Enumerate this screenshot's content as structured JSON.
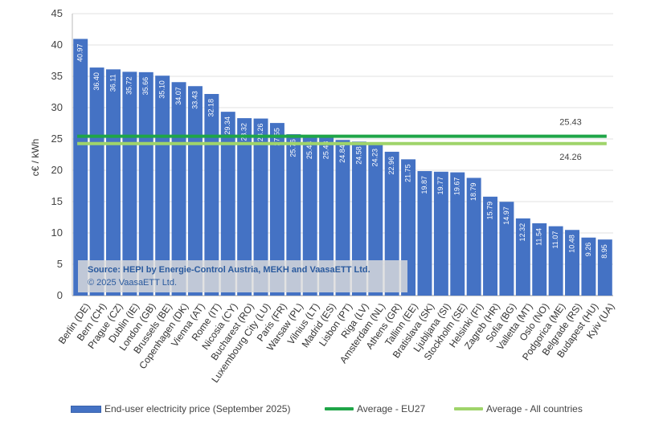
{
  "chart_data": {
    "type": "bar",
    "ylabel": "c€ / kWh",
    "ylim": [
      0,
      45
    ],
    "yticks": [
      0,
      5,
      10,
      15,
      20,
      25,
      30,
      35,
      40,
      45
    ],
    "categories": [
      "Berlin (DE)",
      "Bern (CH)",
      "Prague (CZ)",
      "Dublin (IE)",
      "London (GB)",
      "Brussels (BE)",
      "Copenhagen (DK)",
      "Vienna (AT)",
      "Rome (IT)",
      "Nicosia (CY)",
      "Bucharest (RO)",
      "Luxembourg City (LU)",
      "Paris (FR)",
      "Warsaw (PL)",
      "Vilnius (LT)",
      "Madrid (ES)",
      "Lisbon (PT)",
      "Riga (LV)",
      "Amsterdam (NL)",
      "Athens (GR)",
      "Tallinn (EE)",
      "Bratislava (SK)",
      "Ljubljana (SI)",
      "Stockholm (SE)",
      "Helsinki (FI)",
      "Zagreb (HR)",
      "Sofia (BG)",
      "Valletta (MT)",
      "Oslo (NO)",
      "Podgorica (ME)",
      "Belgrade (RS)",
      "Budapest (HU)",
      "Kyiv (UA)"
    ],
    "values": [
      40.97,
      36.4,
      36.11,
      35.72,
      35.66,
      35.1,
      34.07,
      33.43,
      32.18,
      29.34,
      28.32,
      28.26,
      27.55,
      25.76,
      25.44,
      25.43,
      24.84,
      24.58,
      24.23,
      22.96,
      21.75,
      19.87,
      19.77,
      19.67,
      18.79,
      15.79,
      14.97,
      12.32,
      11.54,
      11.07,
      10.48,
      9.26,
      8.95
    ],
    "value_labels": [
      "40.97",
      "36.40",
      "36.11",
      "35.72",
      "35.66",
      "35.10",
      "34.07",
      "33.43",
      "32.18",
      "29.34",
      "28.32",
      "28.26",
      "27.55",
      "25.76",
      "25.44",
      "25.43",
      "24.84",
      "24.58",
      "24.23",
      "22.96",
      "21.75",
      "19.87",
      "19.77",
      "19.67",
      "18.79",
      "15.79",
      "14.97",
      "12.32",
      "11.54",
      "11.07",
      "10.48",
      "9.26",
      "8.95"
    ],
    "averages": [
      {
        "name": "Average - EU27",
        "value": 25.43,
        "label": "25.43",
        "color": "#1FA548"
      },
      {
        "name": "Average - All countries",
        "value": 24.26,
        "label": "24.26",
        "color": "#9FD46A"
      }
    ],
    "series_name": "End-user electricity price (September 2025)",
    "bar_color": "#4472C4"
  },
  "source": {
    "line1": "Source: HEPI by Energie-Control Austria, MEKH and VaasaETT Ltd.",
    "line2": "© 2025 VaasaETT Ltd."
  },
  "legend": {
    "bars": "End-user electricity price (September 2025)",
    "eu27": "Average - EU27",
    "all": "Average - All countries"
  }
}
